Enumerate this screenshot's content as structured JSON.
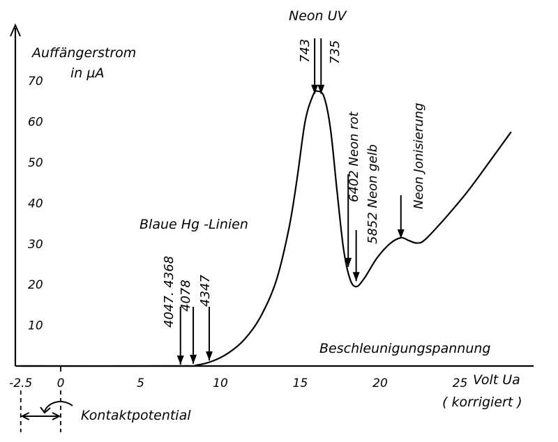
{
  "chart_data": {
    "type": "line",
    "ylabel_line1": "Auffängerstrom",
    "ylabel_line2": "in µA",
    "xlabel": "Beschleunigungspannung",
    "x_unit_line1": "Volt Ua",
    "x_unit_line2": "( korrigiert )",
    "xlim": [
      -2.5,
      30
    ],
    "ylim": [
      0,
      80
    ],
    "x_ticks": [
      {
        "value": -2.5,
        "label": "-2.5"
      },
      {
        "value": 0,
        "label": "0"
      },
      {
        "value": 5,
        "label": "5"
      },
      {
        "value": 10,
        "label": "10"
      },
      {
        "value": 15,
        "label": "15"
      },
      {
        "value": 20,
        "label": "20"
      },
      {
        "value": 25,
        "label": "25"
      }
    ],
    "y_ticks": [
      {
        "value": 10,
        "label": "10"
      },
      {
        "value": 20,
        "label": "20"
      },
      {
        "value": 30,
        "label": "30"
      },
      {
        "value": 40,
        "label": "40"
      },
      {
        "value": 50,
        "label": "50"
      },
      {
        "value": 60,
        "label": "60"
      },
      {
        "value": 70,
        "label": "70"
      }
    ],
    "grid": false,
    "series": [
      {
        "x": [
          -2.5,
          7.5,
          8.5,
          9.5,
          10.5,
          11.5,
          12.5,
          13.5,
          14.3,
          14.8,
          15.3,
          15.8,
          16.1,
          16.5,
          16.9,
          17.3,
          17.7,
          18.1,
          18.5,
          19.0,
          19.8,
          20.6,
          21.3,
          21.8,
          22.3,
          22.8,
          24.0,
          25.5,
          27.0,
          28.2
        ],
        "y": [
          0,
          0,
          0.2,
          1.2,
          3.2,
          6.5,
          12,
          21,
          34,
          46,
          60,
          66.5,
          67.5,
          66,
          58,
          43,
          29,
          21.5,
          19.5,
          21.5,
          26.5,
          30,
          31.5,
          30.8,
          30.2,
          31,
          36,
          43,
          51,
          57.5
        ]
      }
    ],
    "arrows": [
      {
        "x": 7.5,
        "y": 0,
        "label": "4047. 4368"
      },
      {
        "x": 8.3,
        "y": 0.2,
        "label": "4078"
      },
      {
        "x": 9.3,
        "y": 1,
        "label": "4347"
      },
      {
        "x": 15.9,
        "y": 66.5,
        "label": "743"
      },
      {
        "x": 16.3,
        "y": 66.5,
        "label": "735"
      },
      {
        "x": 18.0,
        "y": 24,
        "label": "6402 Neon rot"
      },
      {
        "x": 18.5,
        "y": 20.5,
        "label": "5852 Neon gelb"
      },
      {
        "x": 21.3,
        "y": 31,
        "label": "Neon Jonisierung"
      }
    ],
    "annotations": {
      "blue_hg": "Blaue Hg -Linien",
      "neon_uv": "Neon UV",
      "kontakt": "Kontaktpotential"
    }
  }
}
